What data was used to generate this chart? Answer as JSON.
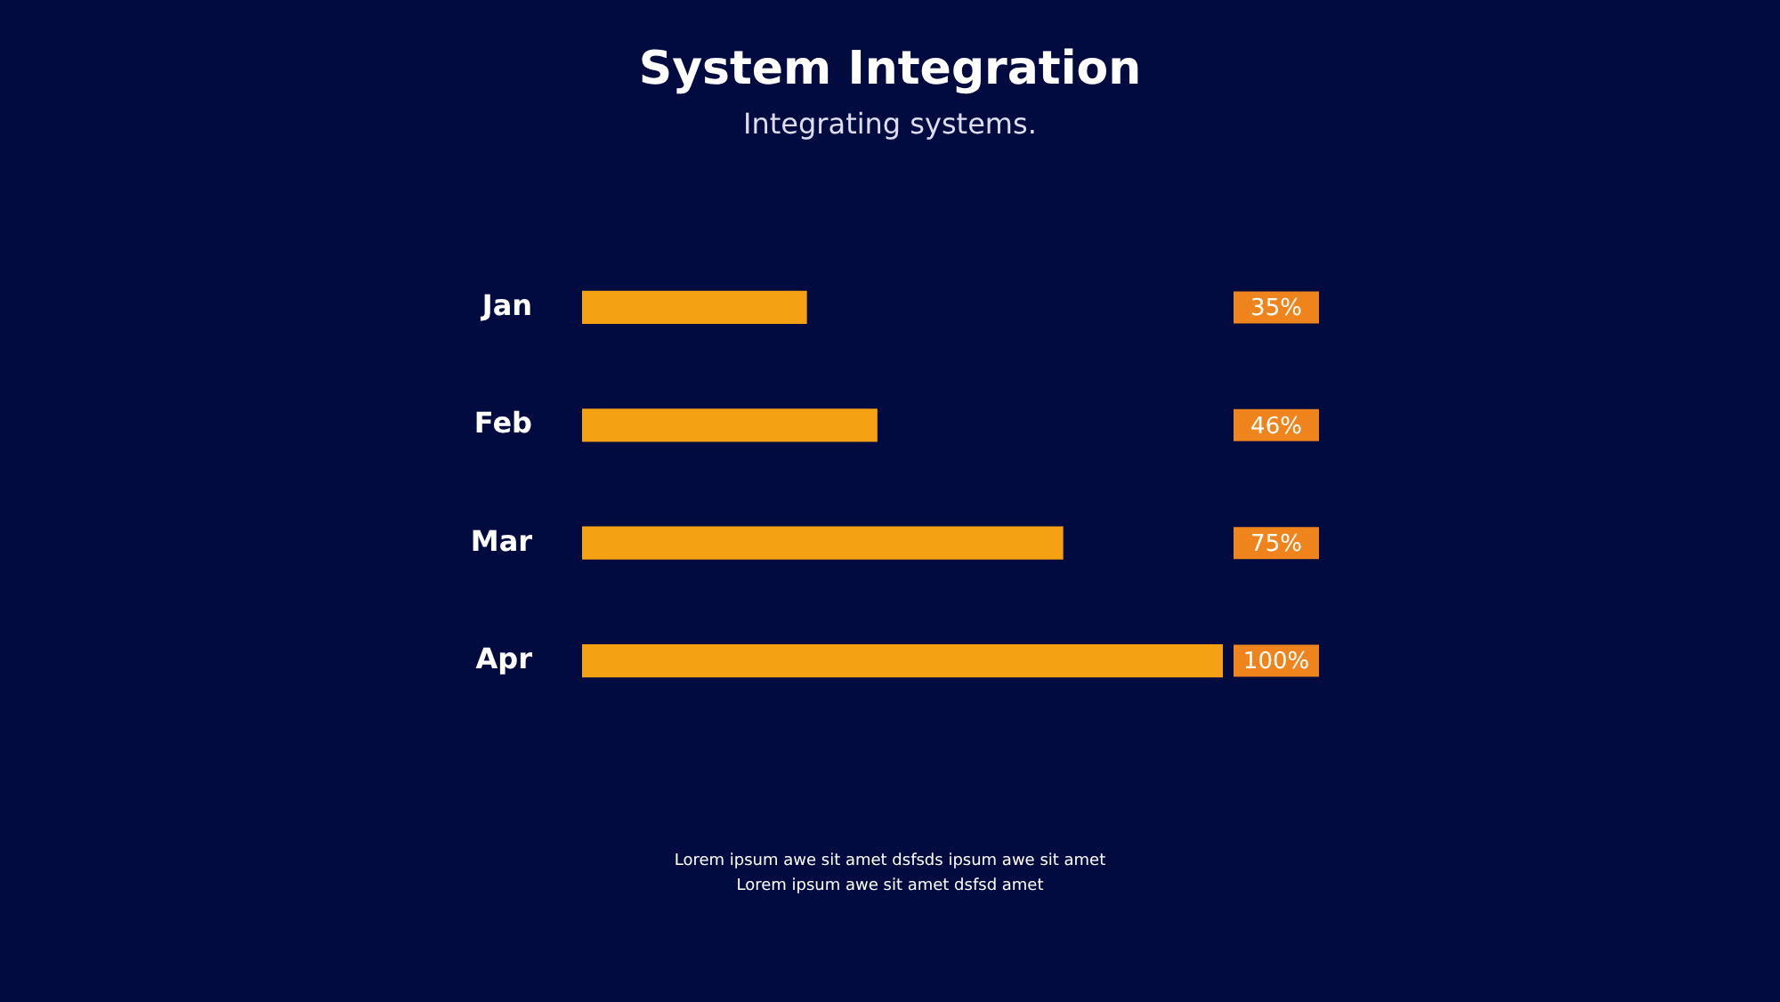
{
  "chart_data": {
    "type": "bar",
    "orientation": "horizontal",
    "title": "System Integration",
    "subtitle": "Integrating systems.",
    "categories": [
      "Jan",
      "Feb",
      "Mar",
      "Apr"
    ],
    "values": [
      35,
      46,
      75,
      100
    ],
    "value_labels": [
      "35%",
      "46%",
      "75%",
      "100%"
    ],
    "color": "#f4a114",
    "xlim": [
      0,
      100
    ],
    "tick_labels": "y",
    "legend": false,
    "annotations": [
      "Lorem ipsum awe sit amet dsfsds ipsum awe sit amet",
      "Lorem ipsum awe sit amet dsfsd amet"
    ]
  }
}
